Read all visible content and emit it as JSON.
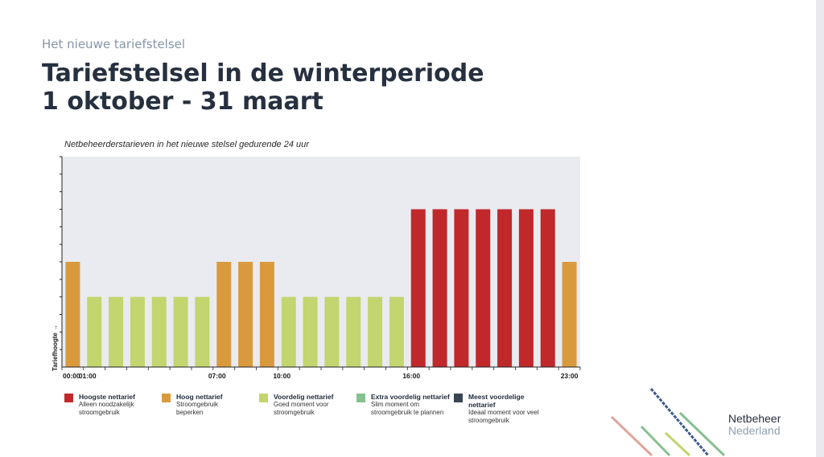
{
  "header": {
    "kicker": "Het nieuwe tariefstelsel",
    "title_line1": "Tariefstelsel in de winterperiode",
    "title_line2": "1 oktober - 31 maart"
  },
  "chart_data": {
    "type": "bar",
    "title": "Netbeheerderstarieven in het nieuwe stelsel gedurende 24 uur",
    "xlabel": "",
    "ylabel": "Tariefhoogte →",
    "tick_labels": [
      "00:00",
      "01:00",
      "07:00",
      "10:00",
      "16:00",
      "23:00"
    ],
    "tick_hours": [
      0,
      1,
      7,
      10,
      16,
      23
    ],
    "categories": [
      "0",
      "1",
      "2",
      "3",
      "4",
      "5",
      "6",
      "7",
      "8",
      "9",
      "10",
      "11",
      "12",
      "13",
      "14",
      "15",
      "16",
      "17",
      "18",
      "19",
      "20",
      "21",
      "22",
      "23"
    ],
    "tariff_levels": [
      "Hoog nettarief",
      "Voordelig nettarief",
      "Voordelig nettarief",
      "Voordelig nettarief",
      "Voordelig nettarief",
      "Voordelig nettarief",
      "Voordelig nettarief",
      "Hoog nettarief",
      "Hoog nettarief",
      "Hoog nettarief",
      "Voordelig nettarief",
      "Voordelig nettarief",
      "Voordelig nettarief",
      "Voordelig nettarief",
      "Voordelig nettarief",
      "Voordelig nettarief",
      "Hoogste nettarief",
      "Hoogste nettarief",
      "Hoogste nettarief",
      "Hoogste nettarief",
      "Hoogste nettarief",
      "Hoogste nettarief",
      "Hoogste nettarief",
      "Hoog nettarief"
    ],
    "values": [
      6,
      4,
      4,
      4,
      4,
      4,
      4,
      6,
      6,
      6,
      4,
      4,
      4,
      4,
      4,
      4,
      9,
      9,
      9,
      9,
      9,
      9,
      9,
      6
    ],
    "ylim": [
      0,
      12
    ],
    "grid": false,
    "legend_position": "bottom"
  },
  "legend": [
    {
      "title": "Hoogste nettarief",
      "desc1": "Alleen noodzakelijk",
      "desc2": "stroomgebruik",
      "color": "#c0282b"
    },
    {
      "title": "Hoog nettarief",
      "desc1": "Stroomgebruik",
      "desc2": "beperken",
      "color": "#d99a3e"
    },
    {
      "title": "Voordelig nettarief",
      "desc1": "Goed moment voor",
      "desc2": "stroomgebruik",
      "color": "#c2d56e"
    },
    {
      "title": "Extra voordelig nettarief",
      "desc1": "Slim moment om",
      "desc2": "stroomgebruik te plannen",
      "color": "#86c08f"
    },
    {
      "title": "Meest voordelige nettarief",
      "desc1": "Ideaal moment voor veel",
      "desc2": "stroomgebruik",
      "color": "#3a4552"
    }
  ],
  "colors": {
    "Hoogste nettarief": "#c0282b",
    "Hoog nettarief": "#d99a3e",
    "Voordelig nettarief": "#c2d56e",
    "plot_bg": "#e9ebf0"
  },
  "logo": {
    "line1": "Netbeheer",
    "line2": "Nederland"
  }
}
